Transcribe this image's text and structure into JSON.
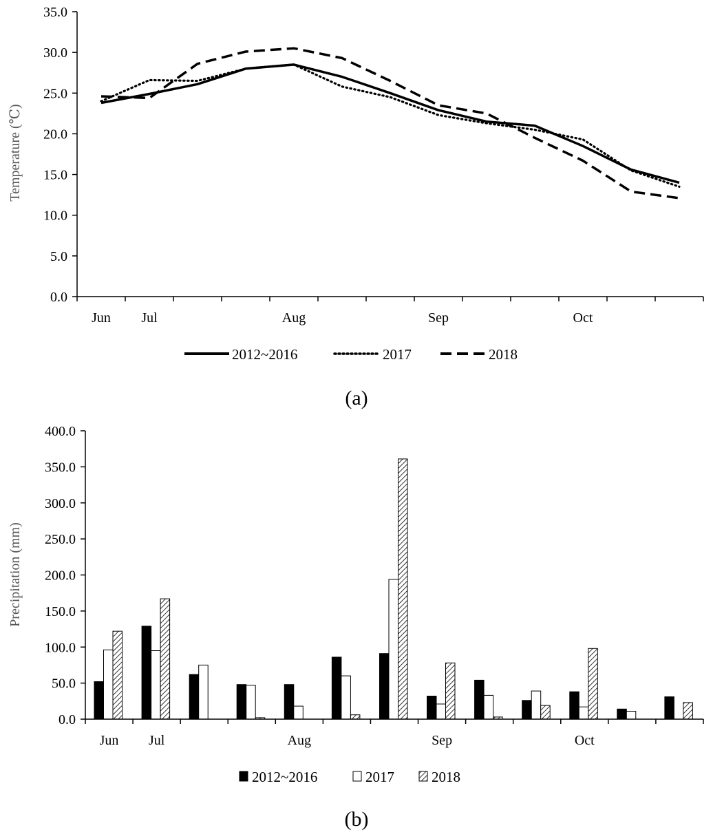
{
  "chart_data": [
    {
      "type": "line",
      "ylabel": "Temperature (℃)",
      "ylim": [
        0,
        35
      ],
      "yticks": [
        "0.0",
        "5.0",
        "10.0",
        "15.0",
        "20.0",
        "25.0",
        "30.0",
        "35.0"
      ],
      "month_labels": [
        {
          "text": "Jun",
          "slot": 0
        },
        {
          "text": "Jul",
          "slot": 1
        },
        {
          "text": "Aug",
          "slot": 4
        },
        {
          "text": "Sep",
          "slot": 7
        },
        {
          "text": "Oct",
          "slot": 10
        }
      ],
      "slots": 13,
      "legend_position": "bottom",
      "grid": false,
      "series": [
        {
          "name": "2012~2016",
          "style": "solid",
          "values": [
            23.8,
            24.9,
            26.1,
            28.0,
            28.5,
            27.0,
            25.0,
            22.9,
            21.5,
            21.0,
            18.5,
            15.6,
            14.0
          ]
        },
        {
          "name": "2017",
          "style": "dotted",
          "values": [
            24.0,
            26.6,
            26.5,
            28.0,
            28.5,
            25.8,
            24.5,
            22.3,
            21.3,
            20.5,
            19.3,
            15.5,
            13.5
          ]
        },
        {
          "name": "2018",
          "style": "dashed",
          "values": [
            24.6,
            24.4,
            28.6,
            30.1,
            30.5,
            29.3,
            26.5,
            23.5,
            22.5,
            19.5,
            16.7,
            12.9,
            12.1
          ]
        }
      ],
      "panel_label": "(a)"
    },
    {
      "type": "bar",
      "ylabel": "Precipitation (mm)",
      "ylim": [
        0,
        400
      ],
      "yticks": [
        "0.0",
        "50.0",
        "100.0",
        "150.0",
        "200.0",
        "250.0",
        "300.0",
        "350.0",
        "400.0"
      ],
      "month_labels": [
        {
          "text": "Jun",
          "slot": 0
        },
        {
          "text": "Jul",
          "slot": 1
        },
        {
          "text": "Aug",
          "slot": 4
        },
        {
          "text": "Sep",
          "slot": 7
        },
        {
          "text": "Oct",
          "slot": 10
        }
      ],
      "slots": 13,
      "legend_position": "bottom",
      "grid": false,
      "series": [
        {
          "name": "2012~2016",
          "fill": "solid-black",
          "values": [
            52,
            129,
            62,
            48,
            48,
            86,
            91,
            32,
            54,
            26,
            38,
            14,
            31
          ]
        },
        {
          "name": "2017",
          "fill": "white",
          "values": [
            96,
            95,
            75,
            47,
            18,
            60,
            194,
            21,
            33,
            39,
            17,
            11,
            0
          ]
        },
        {
          "name": "2018",
          "fill": "hatched",
          "values": [
            122,
            167,
            0,
            2,
            0,
            6,
            361,
            78,
            3,
            19,
            98,
            0,
            23
          ]
        }
      ],
      "panel_label": "(b)"
    }
  ]
}
